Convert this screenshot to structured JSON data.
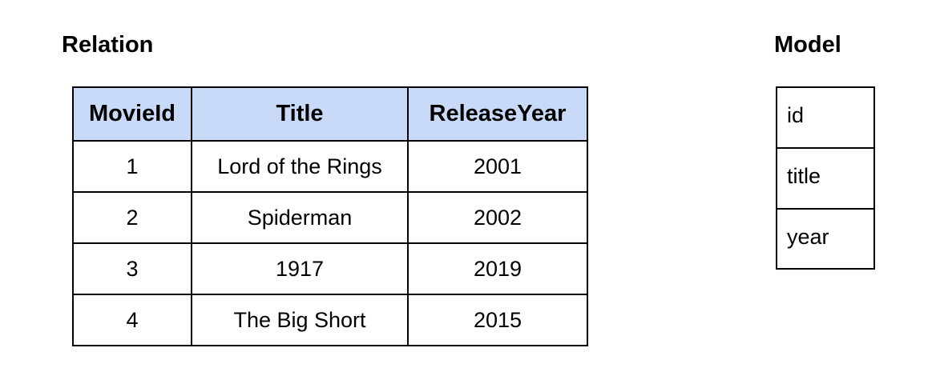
{
  "relation": {
    "heading": "Relation",
    "columns": [
      "MovieId",
      "Title",
      "ReleaseYear"
    ],
    "rows": [
      [
        "1",
        "Lord of the Rings",
        "2001"
      ],
      [
        "2",
        "Spiderman",
        "2002"
      ],
      [
        "3",
        "1917",
        "2019"
      ],
      [
        "4",
        "The Big Short",
        "2015"
      ]
    ]
  },
  "model": {
    "heading": "Model",
    "fields": [
      "id",
      "title",
      "year"
    ]
  },
  "colors": {
    "header_fill": "#c9daf8",
    "border": "#000000"
  }
}
